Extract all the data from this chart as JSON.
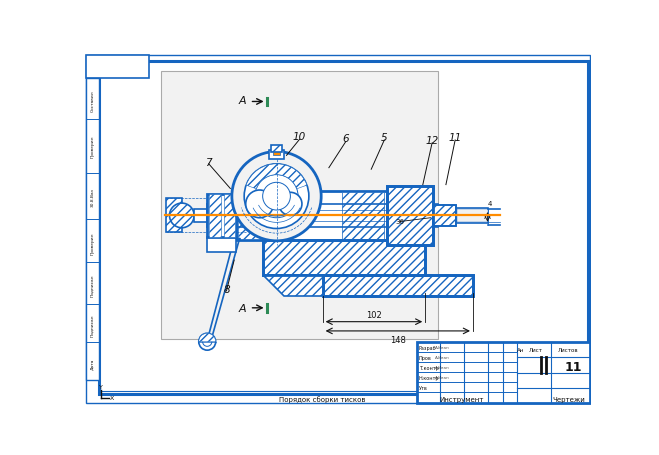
{
  "bg_color": "#ffffff",
  "blue": "#1565C0",
  "orange": "#FF8C00",
  "green": "#2e8b57",
  "dark": "#111111",
  "gray": "#aaaaaa",
  "light_gray": "#f2f2f2",
  "dim1": "102",
  "dim2": "148",
  "section_label": "A"
}
